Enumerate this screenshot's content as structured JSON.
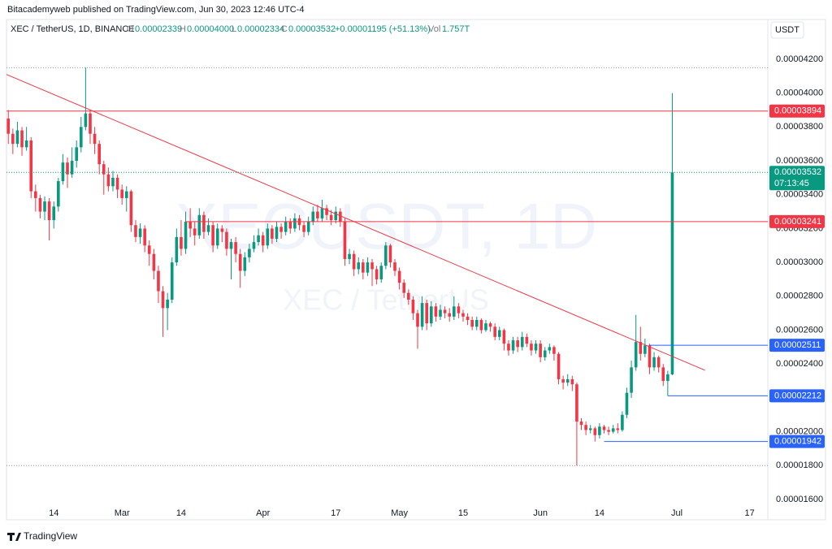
{
  "header": {
    "publisher": "Bitacademyweb published on TradingView.com, Jun 30, 2023 12:46 UTC-4"
  },
  "legend": {
    "symbol": "XEC / TetherUS, 1D, BINANCE",
    "o_label": "O",
    "o": "0.00002339",
    "h_label": "H",
    "h": "0.00004000",
    "l_label": "L",
    "l": "0.00002334",
    "c_label": "C",
    "c": "0.00003532",
    "change": "+0.00001195 (+51.13%)",
    "vol_label": "Vol",
    "vol": "1.757T"
  },
  "logo": "TradingView",
  "chart_data": {
    "type": "candlestick",
    "currency": "USDT",
    "watermark": "XECUSDT, 1D",
    "watermark_sub": "XEC / TetherUS",
    "up_color": "#089981",
    "down_color": "#f23645",
    "open": [
      3.85e-05,
      3.76e-05,
      3.7e-05,
      3.78e-05,
      3.68e-05,
      3.72e-05,
      3.42e-05,
      3.38e-05,
      3.3e-05,
      3.36e-05,
      3.25e-05,
      3.33e-05,
      3.48e-05,
      3.59e-05,
      3.52e-05,
      3.6e-05,
      3.68e-05,
      3.8e-05,
      3.88e-05,
      3.76e-05,
      3.7e-05,
      3.58e-05,
      3.52e-05,
      3.45e-05,
      3.5e-05,
      3.43e-05,
      3.38e-05,
      3.42e-05,
      3.22e-05,
      3.15e-05,
      3.2e-05,
      3.1e-05,
      3.05e-05,
      2.95e-05,
      2.83e-05,
      2.73e-05,
      2.78e-05,
      3e-05,
      3.15e-05,
      3.08e-05,
      3.24e-05,
      3.2e-05,
      3.16e-05,
      3.28e-05,
      3.18e-05,
      3.22e-05,
      3.1e-05,
      3.2e-05,
      3.18e-05,
      3.08e-05,
      3.12e-05,
      3.05e-05,
      2.95e-05,
      3.03e-05,
      3.08e-05,
      3.12e-05,
      3.16e-05,
      3.1e-05,
      3.2e-05,
      3.14e-05,
      3.21e-05,
      3.18e-05,
      3.24e-05,
      3.2e-05,
      3.26e-05,
      3.22e-05,
      3.18e-05,
      3.24e-05,
      3.3e-05,
      3.26e-05,
      3.32e-05,
      3.28e-05,
      3.25e-05,
      3.3e-05,
      3.24e-05,
      3.02e-05,
      3.05e-05,
      2.96e-05,
      3e-05,
      2.94e-05,
      3e-05,
      2.96e-05,
      2.9e-05,
      2.98e-05,
      3.1e-05,
      3e-05,
      2.95e-05,
      2.88e-05,
      2.82e-05,
      2.78e-05,
      2.7e-05,
      2.62e-05,
      2.76e-05,
      2.64e-05,
      2.74e-05,
      2.68e-05,
      2.72e-05,
      2.7e-05,
      2.68e-05,
      2.74e-05,
      2.7e-05,
      2.68e-05,
      2.66e-05,
      2.62e-05,
      2.66e-05,
      2.6e-05,
      2.64e-05,
      2.62e-05,
      2.56e-05,
      2.6e-05,
      2.52e-05,
      2.48e-05,
      2.54e-05,
      2.5e-05,
      2.56e-05,
      2.52e-05,
      2.48e-05,
      2.52e-05,
      2.44e-05,
      2.48e-05,
      2.5e-05,
      2.46e-05,
      2.31e-05,
      2.29e-05,
      2.31e-05,
      2.28e-05,
      2.06e-05,
      2.04e-05,
      2.01e-05,
      2.02e-05,
      1.98e-05,
      2.03e-05,
      2.01e-05,
      2e-05,
      2.02e-05,
      2.01e-05,
      2.1e-05,
      2.23e-05,
      2.38e-05,
      2.53e-05,
      2.46e-05,
      2.51e-05,
      2.38e-05,
      2.44e-05,
      2.38e-05,
      2.3e-05,
      2.339e-05
    ],
    "high": [
      3.9e-05,
      3.79e-05,
      3.83e-05,
      3.8e-05,
      3.8e-05,
      3.74e-05,
      3.46e-05,
      3.4e-05,
      3.39e-05,
      3.38e-05,
      3.36e-05,
      3.5e-05,
      3.64e-05,
      3.62e-05,
      3.68e-05,
      3.72e-05,
      3.86e-05,
      4.15e-05,
      3.9e-05,
      3.8e-05,
      3.72e-05,
      3.6e-05,
      3.56e-05,
      3.54e-05,
      3.52e-05,
      3.46e-05,
      3.45e-05,
      3.43e-05,
      3.25e-05,
      3.23e-05,
      3.22e-05,
      3.13e-05,
      3.08e-05,
      2.98e-05,
      2.86e-05,
      2.82e-05,
      3.03e-05,
      3.2e-05,
      3.25e-05,
      3.3e-05,
      3.32e-05,
      3.24e-05,
      3.32e-05,
      3.3e-05,
      3.26e-05,
      3.24e-05,
      3.23e-05,
      3.22e-05,
      3.2e-05,
      3.14e-05,
      3.15e-05,
      3.08e-05,
      3.06e-05,
      3.11e-05,
      3.16e-05,
      3.2e-05,
      3.18e-05,
      3.23e-05,
      3.22e-05,
      3.24e-05,
      3.23e-05,
      3.27e-05,
      3.26e-05,
      3.29e-05,
      3.28e-05,
      3.24e-05,
      3.27e-05,
      3.33e-05,
      3.34e-05,
      3.37e-05,
      3.34e-05,
      3.31e-05,
      3.33e-05,
      3.32e-05,
      3.26e-05,
      3.08e-05,
      3.07e-05,
      3.03e-05,
      3.02e-05,
      3.03e-05,
      3.02e-05,
      2.98e-05,
      3e-05,
      3.12e-05,
      3.11e-05,
      3.02e-05,
      2.97e-05,
      2.9e-05,
      2.84e-05,
      2.8e-05,
      2.72e-05,
      2.8e-05,
      2.78e-05,
      2.77e-05,
      2.76e-05,
      2.75e-05,
      2.74e-05,
      2.73e-05,
      2.8e-05,
      2.76e-05,
      2.72e-05,
      2.7e-05,
      2.68e-05,
      2.68e-05,
      2.67e-05,
      2.66e-05,
      2.65e-05,
      2.64e-05,
      2.62e-05,
      2.61e-05,
      2.54e-05,
      2.56e-05,
      2.56e-05,
      2.59e-05,
      2.58e-05,
      2.54e-05,
      2.54e-05,
      2.54e-05,
      2.5e-05,
      2.52e-05,
      2.51e-05,
      2.47e-05,
      2.33e-05,
      2.34e-05,
      2.33e-05,
      2.29e-05,
      2.08e-05,
      2.06e-05,
      2.04e-05,
      2.03e-05,
      2.05e-05,
      2.04e-05,
      2.03e-05,
      2.04e-05,
      2.05e-05,
      2.12e-05,
      2.26e-05,
      2.42e-05,
      2.69e-05,
      2.62e-05,
      2.55e-05,
      2.52e-05,
      2.47e-05,
      2.45e-05,
      2.4e-05,
      2.36e-05,
      4e-05
    ],
    "low": [
      3.7e-05,
      3.64e-05,
      3.68e-05,
      3.63e-05,
      3.66e-05,
      3.38e-05,
      3.3e-05,
      3.26e-05,
      3.25e-05,
      3.13e-05,
      3.2e-05,
      3.3e-05,
      3.46e-05,
      3.44e-05,
      3.5e-05,
      3.56e-05,
      3.65e-05,
      3.78e-05,
      3.7e-05,
      3.64e-05,
      3.52e-05,
      3.4e-05,
      3.42e-05,
      3.42e-05,
      3.38e-05,
      3.34e-05,
      3.3e-05,
      3.18e-05,
      3.12e-05,
      3.11e-05,
      3.06e-05,
      2.98e-05,
      2.9e-05,
      2.76e-05,
      2.56e-05,
      2.6e-05,
      2.76e-05,
      2.98e-05,
      3.04e-05,
      3.05e-05,
      3.15e-05,
      3.1e-05,
      3.14e-05,
      3.14e-05,
      3.16e-05,
      3.06e-05,
      3.08e-05,
      3.12e-05,
      3.04e-05,
      2.9e-05,
      3e-05,
      2.85e-05,
      2.92e-05,
      3e-05,
      3.06e-05,
      3.1e-05,
      3.06e-05,
      3.08e-05,
      3.11e-05,
      3.12e-05,
      3.14e-05,
      3.16e-05,
      3.17e-05,
      3.18e-05,
      3.19e-05,
      3.15e-05,
      3.16e-05,
      3.22e-05,
      3.24e-05,
      3.24e-05,
      3.25e-05,
      3.22e-05,
      3.23e-05,
      3.21e-05,
      2.98e-05,
      2.99e-05,
      2.92e-05,
      2.93e-05,
      2.9e-05,
      2.92e-05,
      2.86e-05,
      2.87e-05,
      2.88e-05,
      2.96e-05,
      2.97e-05,
      2.92e-05,
      2.84e-05,
      2.79e-05,
      2.75e-05,
      2.66e-05,
      2.49e-05,
      2.6e-05,
      2.6e-05,
      2.62e-05,
      2.65e-05,
      2.66e-05,
      2.67e-05,
      2.65e-05,
      2.66e-05,
      2.67e-05,
      2.65e-05,
      2.63e-05,
      2.6e-05,
      2.6e-05,
      2.58e-05,
      2.59e-05,
      2.59e-05,
      2.54e-05,
      2.54e-05,
      2.48e-05,
      2.45e-05,
      2.46e-05,
      2.47e-05,
      2.48e-05,
      2.5e-05,
      2.45e-05,
      2.46e-05,
      2.41e-05,
      2.42e-05,
      2.46e-05,
      2.42e-05,
      2.28e-05,
      2.25e-05,
      2.27e-05,
      2.24e-05,
      1.8e-05,
      2.01e-05,
      1.98e-05,
      1.99e-05,
      1.942e-05,
      1.96e-05,
      1.99e-05,
      1.98e-05,
      1.99e-05,
      1.99e-05,
      2e-05,
      2.08e-05,
      2.2e-05,
      2.36e-05,
      2.42e-05,
      2.44e-05,
      2.34e-05,
      2.36e-05,
      2.35e-05,
      2.27e-05,
      2.212e-05,
      2.334e-05
    ],
    "close": [
      3.76e-05,
      3.7e-05,
      3.78e-05,
      3.68e-05,
      3.72e-05,
      3.42e-05,
      3.38e-05,
      3.3e-05,
      3.36e-05,
      3.25e-05,
      3.33e-05,
      3.48e-05,
      3.59e-05,
      3.52e-05,
      3.6e-05,
      3.68e-05,
      3.8e-05,
      3.88e-05,
      3.76e-05,
      3.7e-05,
      3.58e-05,
      3.52e-05,
      3.45e-05,
      3.5e-05,
      3.43e-05,
      3.38e-05,
      3.42e-05,
      3.22e-05,
      3.15e-05,
      3.2e-05,
      3.1e-05,
      3.05e-05,
      2.95e-05,
      2.83e-05,
      2.73e-05,
      2.78e-05,
      3e-05,
      3.15e-05,
      3.08e-05,
      3.24e-05,
      3.2e-05,
      3.16e-05,
      3.28e-05,
      3.18e-05,
      3.22e-05,
      3.1e-05,
      3.2e-05,
      3.18e-05,
      3.08e-05,
      3.12e-05,
      3.05e-05,
      2.95e-05,
      3.03e-05,
      3.08e-05,
      3.12e-05,
      3.16e-05,
      3.1e-05,
      3.2e-05,
      3.14e-05,
      3.21e-05,
      3.18e-05,
      3.24e-05,
      3.2e-05,
      3.26e-05,
      3.22e-05,
      3.18e-05,
      3.24e-05,
      3.3e-05,
      3.26e-05,
      3.32e-05,
      3.28e-05,
      3.25e-05,
      3.3e-05,
      3.24e-05,
      3.02e-05,
      3.05e-05,
      2.96e-05,
      3e-05,
      2.94e-05,
      3e-05,
      2.96e-05,
      2.9e-05,
      2.98e-05,
      3.1e-05,
      3e-05,
      2.95e-05,
      2.88e-05,
      2.82e-05,
      2.78e-05,
      2.7e-05,
      2.62e-05,
      2.76e-05,
      2.64e-05,
      2.74e-05,
      2.68e-05,
      2.72e-05,
      2.7e-05,
      2.68e-05,
      2.74e-05,
      2.7e-05,
      2.68e-05,
      2.66e-05,
      2.62e-05,
      2.66e-05,
      2.6e-05,
      2.64e-05,
      2.62e-05,
      2.56e-05,
      2.6e-05,
      2.52e-05,
      2.48e-05,
      2.54e-05,
      2.5e-05,
      2.56e-05,
      2.52e-05,
      2.48e-05,
      2.52e-05,
      2.44e-05,
      2.48e-05,
      2.5e-05,
      2.46e-05,
      2.31e-05,
      2.29e-05,
      2.31e-05,
      2.28e-05,
      2.06e-05,
      2.04e-05,
      2.01e-05,
      2.02e-05,
      1.98e-05,
      2.03e-05,
      2.01e-05,
      2e-05,
      2.02e-05,
      2.01e-05,
      2.1e-05,
      2.23e-05,
      2.38e-05,
      2.53e-05,
      2.46e-05,
      2.51e-05,
      2.38e-05,
      2.44e-05,
      2.38e-05,
      2.3e-05,
      2.339e-05,
      3.532e-05
    ],
    "xlim": [
      -0.4,
      167
    ],
    "xticks": [
      {
        "value": 10,
        "label": "14"
      },
      {
        "value": 25,
        "label": "Mar"
      },
      {
        "value": 38,
        "label": "14"
      },
      {
        "value": 56,
        "label": "Apr"
      },
      {
        "value": 72,
        "label": "17"
      },
      {
        "value": 86,
        "label": "May"
      },
      {
        "value": 100,
        "label": "15"
      },
      {
        "value": 117,
        "label": "Jun"
      },
      {
        "value": 130,
        "label": "14"
      },
      {
        "value": 147,
        "label": "Jul"
      },
      {
        "value": 163,
        "label": "17"
      }
    ],
    "ylim": [
      1.48e-05,
      4.43e-05
    ],
    "yticks": [
      {
        "value": 1.6e-05,
        "label": "0.00001600"
      },
      {
        "value": 1.8e-05,
        "label": "0.00001800"
      },
      {
        "value": 2e-05,
        "label": "0.00002000"
      },
      {
        "value": 2.4e-05,
        "label": "0.00002400"
      },
      {
        "value": 2.6e-05,
        "label": "0.00002600"
      },
      {
        "value": 2.8e-05,
        "label": "0.00002800"
      },
      {
        "value": 3e-05,
        "label": "0.00003000"
      },
      {
        "value": 3.2e-05,
        "label": "0.00003200"
      },
      {
        "value": 3.4e-05,
        "label": "0.00003400"
      },
      {
        "value": 3.6e-05,
        "label": "0.00003600"
      },
      {
        "value": 3.8e-05,
        "label": "0.00003800"
      },
      {
        "value": 4e-05,
        "label": "0.00004000"
      },
      {
        "value": 4.2e-05,
        "label": "0.00004200"
      }
    ],
    "dotted_levels": [
      4.15e-05,
      1.8e-05
    ],
    "trendline": {
      "x": [
        -0.4,
        153.2
      ],
      "y": [
        4.11e-05,
        2.363e-05
      ],
      "color": "#f23645"
    },
    "price_lines": [
      {
        "value": 3.894e-05,
        "label": "0.00003894",
        "color": "#f23645"
      },
      {
        "value": 3.532e-05,
        "label": "0.00003532",
        "color": "#089981",
        "countdown": "07:13:45",
        "dotted": true
      },
      {
        "value": 3.241e-05,
        "label": "0.00003241",
        "color": "#f23645",
        "x_from": 39
      },
      {
        "value": 2.511e-05,
        "label": "0.00002511",
        "color": "#2962ff",
        "x_from": 141
      },
      {
        "value": 2.212e-05,
        "label": "0.00002212",
        "color": "#2962ff",
        "x_from": 145
      },
      {
        "value": 1.942e-05,
        "label": "0.00001942",
        "color": "#2962ff",
        "x_from": 131
      }
    ]
  }
}
